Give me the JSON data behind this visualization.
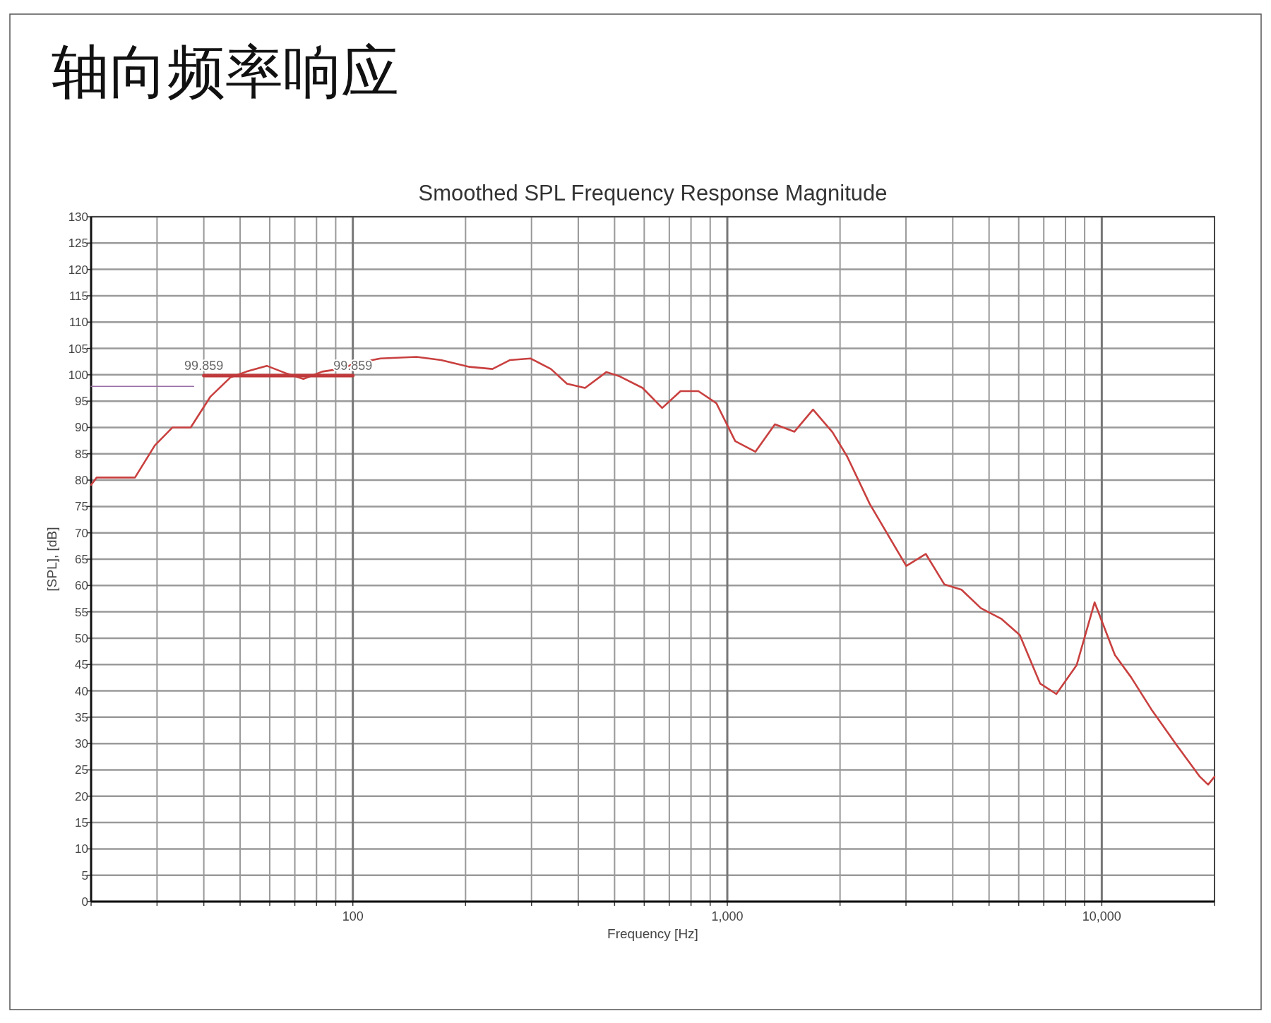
{
  "chart_data": {
    "type": "line",
    "title": "轴向频率响应",
    "subtitle": "Smoothed SPL Frequency Response Magnitude",
    "xlabel": "Frequency [Hz]",
    "ylabel": "[SPL], [dB]",
    "log": "x",
    "grid": true,
    "marker": "none",
    "line_style": "solid",
    "xlim": [
      20,
      20000
    ],
    "ylim": [
      0,
      130
    ],
    "xticks": [
      {
        "value": 20,
        "label": null
      },
      {
        "value": 30,
        "label": null
      },
      {
        "value": 40,
        "label": null
      },
      {
        "value": 50,
        "label": null
      },
      {
        "value": 60,
        "label": null
      },
      {
        "value": 70,
        "label": null
      },
      {
        "value": 80,
        "label": null
      },
      {
        "value": 90,
        "label": null
      },
      {
        "value": 100,
        "label": "100"
      },
      {
        "value": 200,
        "label": null
      },
      {
        "value": 300,
        "label": null
      },
      {
        "value": 400,
        "label": null
      },
      {
        "value": 500,
        "label": null
      },
      {
        "value": 600,
        "label": null
      },
      {
        "value": 700,
        "label": null
      },
      {
        "value": 800,
        "label": null
      },
      {
        "value": 900,
        "label": null
      },
      {
        "value": 1000,
        "label": "1,000"
      },
      {
        "value": 2000,
        "label": null
      },
      {
        "value": 3000,
        "label": null
      },
      {
        "value": 4000,
        "label": null
      },
      {
        "value": 5000,
        "label": null
      },
      {
        "value": 6000,
        "label": null
      },
      {
        "value": 7000,
        "label": null
      },
      {
        "value": 8000,
        "label": null
      },
      {
        "value": 9000,
        "label": null
      },
      {
        "value": 10000,
        "label": "10,000"
      },
      {
        "value": 20000,
        "label": null
      }
    ],
    "yticks": [
      0,
      5,
      10,
      15,
      20,
      25,
      30,
      35,
      40,
      45,
      50,
      55,
      60,
      65,
      70,
      75,
      80,
      85,
      90,
      95,
      100,
      105,
      110,
      115,
      120,
      125,
      130
    ],
    "series": [
      {
        "color": "#c8403f",
        "x": [
          20,
          20.7,
          26.2,
          29.6,
          33,
          36.9,
          41.6,
          47.1,
          52,
          58.9,
          66.8,
          73.8,
          82.8,
          92.3,
          102,
          118.5,
          148,
          172,
          205,
          236,
          263,
          298,
          338,
          373,
          417,
          475,
          516,
          594,
          670,
          750,
          837,
          935,
          1050,
          1189,
          1340,
          1511,
          1694,
          1909,
          2089,
          2400,
          3006,
          3388,
          3800,
          4220,
          4754,
          5386,
          6040,
          6842,
          7563,
          8570,
          9570,
          10840,
          11970,
          13560,
          15740,
          18280,
          19230,
          20000
        ],
        "values": [
          79.1,
          80.5,
          80.5,
          86.6,
          90,
          90,
          95.8,
          99.5,
          100.6,
          101.7,
          100.2,
          99.2,
          100.6,
          101.1,
          102.2,
          103.1,
          103.4,
          102.8,
          101.5,
          101.1,
          102.8,
          103.1,
          101.1,
          98.3,
          97.5,
          100.5,
          99.7,
          97.5,
          93.7,
          96.9,
          96.9,
          94.6,
          87.4,
          85.4,
          90.6,
          89.2,
          93.4,
          89.1,
          84.5,
          75.5,
          63.7,
          66,
          60.2,
          59.2,
          55.7,
          53.7,
          50.6,
          41.4,
          39.4,
          44.9,
          56.8,
          46.8,
          42.6,
          36.5,
          30,
          23.7,
          22.2,
          23.7
        ]
      },
      {
        "color": "#c0393b",
        "x": [
          40,
          100
        ],
        "values": [
          99.859,
          99.859
        ],
        "value_labels": [
          "99.859",
          "99.859"
        ]
      },
      {
        "color": "#9a70a6",
        "x": [
          20,
          37.6
        ],
        "values": [
          97.8,
          97.8
        ]
      }
    ]
  }
}
